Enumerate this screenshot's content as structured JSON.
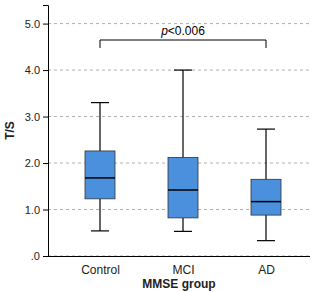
{
  "chart_data": {
    "type": "box",
    "x_label": "MMSE group",
    "y_label": "T/S",
    "categories": [
      "Control",
      "MCI",
      "AD"
    ],
    "whisker_low": [
      0.54,
      0.53,
      0.33
    ],
    "q1": [
      1.23,
      0.82,
      0.88
    ],
    "median": [
      1.68,
      1.42,
      1.17
    ],
    "q3": [
      2.26,
      2.12,
      1.65
    ],
    "whisker_high": [
      3.3,
      4.0,
      2.73
    ],
    "color": "#4a90dc",
    "ylim": [
      0,
      5.4
    ],
    "yticks": [
      {
        "value": 0,
        "label": ".0"
      },
      {
        "value": 1,
        "label": "1.0"
      },
      {
        "value": 2,
        "label": "2.0"
      },
      {
        "value": 3,
        "label": "3.0"
      },
      {
        "value": 4,
        "label": "4.0"
      },
      {
        "value": 5,
        "label": "5.0"
      }
    ],
    "grid": true,
    "annotations": [
      {
        "text": "p<0.006",
        "categories": [
          "Control",
          "AD"
        ]
      }
    ]
  }
}
